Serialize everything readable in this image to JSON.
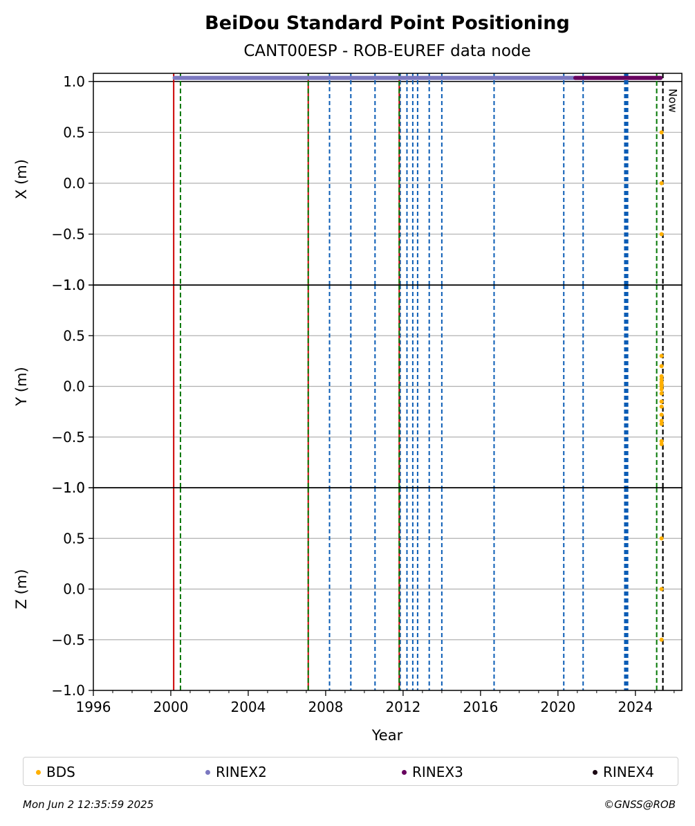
{
  "chart_data": {
    "type": "scatter",
    "title": "BeiDou Standard Point Positioning",
    "subtitle": "CANT00ESP - ROB-EUREF data node",
    "xlabel": "Year",
    "xlim": [
      1996.0,
      2026.4
    ],
    "x_ticks": [
      "1996",
      "2000",
      "2004",
      "2008",
      "2012",
      "2016",
      "2020",
      "2024"
    ],
    "x_tick_values": [
      1996,
      2000,
      2004,
      2008,
      2012,
      2016,
      2020,
      2024
    ],
    "grid": "horizontal",
    "legend_placement": "below",
    "now_label": "Now",
    "now_x": 2025.42,
    "panels": [
      {
        "ylabel": "X (m)",
        "ylim": [
          -1.0,
          1.08
        ],
        "y_ticks": [
          "1.0",
          "0.5",
          "0.0",
          "−0.5",
          "−1.0"
        ],
        "y_tick_values": [
          1.0,
          0.5,
          0.0,
          -0.5,
          -1.0
        ],
        "points": [
          {
            "x": 2025.35,
            "y": 0.5
          },
          {
            "x": 2025.35,
            "y": 0.0
          },
          {
            "x": 2025.35,
            "y": -0.5
          }
        ]
      },
      {
        "ylabel": "Y (m)",
        "ylim": [
          -1.0,
          1.0
        ],
        "y_ticks": [
          "1.0",
          "0.5",
          "0.0",
          "−0.5",
          "−1.0"
        ],
        "y_tick_values": [
          1.0,
          0.5,
          0.0,
          -0.5,
          -1.0
        ],
        "points": [
          {
            "x": 2025.35,
            "y": 0.3
          },
          {
            "x": 2025.35,
            "y": 0.2
          },
          {
            "x": 2025.35,
            "y": 0.1
          },
          {
            "x": 2025.35,
            "y": 0.07
          },
          {
            "x": 2025.35,
            "y": 0.04
          },
          {
            "x": 2025.35,
            "y": 0.02
          },
          {
            "x": 2025.35,
            "y": 0.0
          },
          {
            "x": 2025.35,
            "y": -0.03
          },
          {
            "x": 2025.35,
            "y": -0.07
          },
          {
            "x": 2025.35,
            "y": -0.15
          },
          {
            "x": 2025.35,
            "y": -0.2
          },
          {
            "x": 2025.35,
            "y": -0.28
          },
          {
            "x": 2025.35,
            "y": -0.34
          },
          {
            "x": 2025.35,
            "y": -0.37
          },
          {
            "x": 2025.35,
            "y": -0.54
          },
          {
            "x": 2025.35,
            "y": -0.57
          }
        ]
      },
      {
        "ylabel": "Z (m)",
        "ylim": [
          -1.0,
          1.0
        ],
        "y_ticks": [
          "1.0",
          "0.5",
          "0.0",
          "−0.5",
          "−1.0"
        ],
        "y_tick_values": [
          1.0,
          0.5,
          0.0,
          -0.5,
          -1.0
        ],
        "points": [
          {
            "x": 2025.35,
            "y": 0.5
          },
          {
            "x": 2025.35,
            "y": 0.0
          },
          {
            "x": 2025.35,
            "y": -0.5
          }
        ]
      }
    ],
    "data_bars": [
      {
        "series": "RINEX2",
        "x_start": 2000.2,
        "x_end": 2020.9,
        "y": 1.035
      },
      {
        "series": "RINEX3",
        "x_start": 2020.9,
        "x_end": 2025.3,
        "y": 1.035
      }
    ],
    "event_lines": {
      "red": [
        2000.15,
        2007.1,
        2011.8
      ],
      "green": [
        2000.5,
        2007.1,
        2011.8,
        2025.1
      ],
      "blue": [
        2008.2,
        2009.3,
        2010.55,
        2011.85,
        2012.2,
        2012.5,
        2012.75,
        2013.35,
        2014.0,
        2016.7,
        2020.3,
        2021.3,
        2023.45,
        2023.5,
        2023.55,
        2023.6
      ],
      "now": [
        2025.42
      ]
    },
    "series": [
      {
        "name": "BDS",
        "color": "#ffb000"
      },
      {
        "name": "RINEX2",
        "color": "#7b78c0"
      },
      {
        "name": "RINEX3",
        "color": "#67005e"
      },
      {
        "name": "RINEX4",
        "color": "#1a0612"
      }
    ],
    "colors": {
      "event_red": "#cc0000",
      "event_green": "#007700",
      "event_blue": "#0a5cb5",
      "grid": "#b0b0b0"
    }
  },
  "footer": {
    "timestamp": "Mon Jun  2 12:35:59 2025",
    "copyright": "©GNSS@ROB"
  }
}
